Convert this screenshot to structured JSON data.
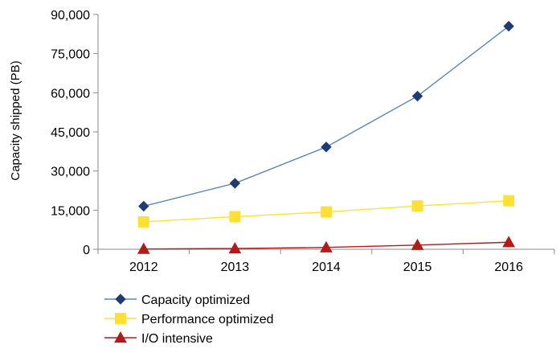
{
  "chart_data": {
    "type": "line",
    "title": "",
    "xlabel": "",
    "ylabel": "Capacity shipped (PB)",
    "categories": [
      "2012",
      "2013",
      "2014",
      "2015",
      "2016"
    ],
    "ylim": [
      0,
      90000
    ],
    "yticks": [
      0,
      15000,
      30000,
      45000,
      60000,
      75000,
      90000
    ],
    "ytick_labels": [
      "0",
      "15,000",
      "30,000",
      "45,000",
      "60,000",
      "75,000",
      "90,000"
    ],
    "grid": false,
    "legend_position": "bottom-left",
    "series": [
      {
        "name": "Capacity optimized",
        "values": [
          16500,
          25300,
          39200,
          58700,
          85500
        ],
        "color": "#1f3b73",
        "line_color": "#5a87b5",
        "marker": "diamond"
      },
      {
        "name": "Performance optimized",
        "values": [
          10500,
          12500,
          14300,
          16600,
          18600
        ],
        "color": "#ffe033",
        "line_color": "#ffe033",
        "marker": "square"
      },
      {
        "name": "I/O intensive",
        "values": [
          100,
          300,
          700,
          1600,
          2700
        ],
        "color": "#b31b1b",
        "line_color": "#b31b1b",
        "marker": "triangle"
      }
    ]
  }
}
